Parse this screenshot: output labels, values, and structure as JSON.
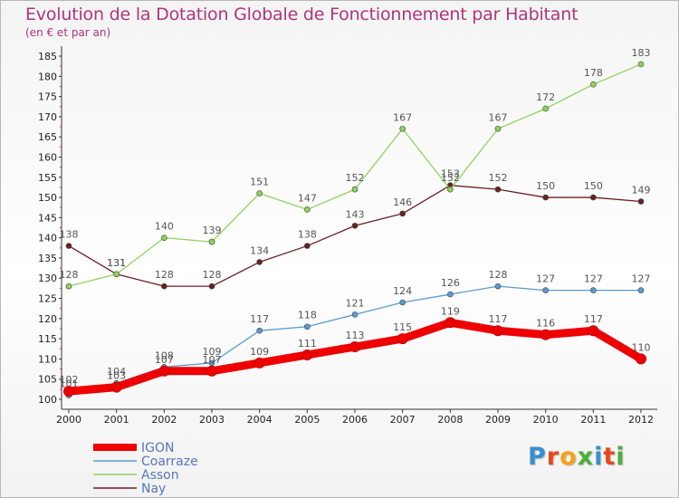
{
  "header": {
    "title": "Evolution de la Dotation Globale de Fonctionnement par Habitant",
    "subtitle": "(en € et par an)"
  },
  "logo": {
    "text": "Proxiti",
    "letter_colors": [
      "#3a8fd0",
      "#e8471c",
      "#f2a516",
      "#4caf3c",
      "#3a8fd0",
      "#e8471c",
      "#4caf3c"
    ]
  },
  "chart_data": {
    "type": "line",
    "title": "Evolution de la Dotation Globale de Fonctionnement par Habitant",
    "subtitle": "(en € et par an)",
    "xlabel": "",
    "ylabel": "",
    "ylim": [
      100,
      185
    ],
    "yticks": [
      100,
      105,
      110,
      115,
      120,
      125,
      130,
      135,
      140,
      145,
      150,
      155,
      160,
      165,
      170,
      175,
      180,
      185
    ],
    "grid": false,
    "legend_position": "bottom-left",
    "x": [
      "2000",
      "2001",
      "2002",
      "2003",
      "2004",
      "2005",
      "2006",
      "2007",
      "2008",
      "2009",
      "2010",
      "2011",
      "2012"
    ],
    "series": [
      {
        "name": "Nay",
        "color": "#6b1f1f",
        "values": [
          138,
          131,
          128,
          128,
          134,
          138,
          143,
          146,
          153,
          152,
          150,
          150,
          149
        ],
        "labels": [
          "138",
          "131",
          "128",
          "128",
          "134",
          "138",
          "143",
          "146",
          "153",
          "152",
          "150",
          "150",
          "149"
        ]
      },
      {
        "name": "Asson",
        "color": "#8fd35a",
        "values": [
          128,
          131,
          140,
          139,
          151,
          147,
          152,
          167,
          152,
          167,
          172,
          178,
          183
        ],
        "labels": [
          "128",
          "131",
          "140",
          "139",
          "151",
          "147",
          "152",
          "167",
          "152",
          "167",
          "172",
          "178",
          "183"
        ]
      },
      {
        "name": "Coarraze",
        "color": "#5a9bd0",
        "values": [
          101,
          104,
          108,
          109,
          117,
          118,
          121,
          124,
          126,
          128,
          127,
          127,
          127
        ],
        "labels": [
          "101",
          "104",
          "108",
          "109",
          "117",
          "118",
          "121",
          "124",
          "126",
          "128",
          "127",
          "127",
          "127"
        ]
      },
      {
        "name": "IGON",
        "color": "#ee0000",
        "values": [
          102,
          103,
          107,
          107,
          109,
          111,
          113,
          115,
          119,
          117,
          116,
          117,
          110
        ],
        "labels": [
          "102",
          "103",
          "107",
          "107",
          "109",
          "111",
          "113",
          "115",
          "119",
          "117",
          "116",
          "117",
          "110"
        ]
      }
    ],
    "legend": [
      {
        "name": "IGON",
        "color": "#ee0000"
      },
      {
        "name": "Coarraze",
        "color": "#5a9bd0"
      },
      {
        "name": "Asson",
        "color": "#8fd35a"
      },
      {
        "name": "Nay",
        "color": "#6b1f1f"
      }
    ]
  }
}
